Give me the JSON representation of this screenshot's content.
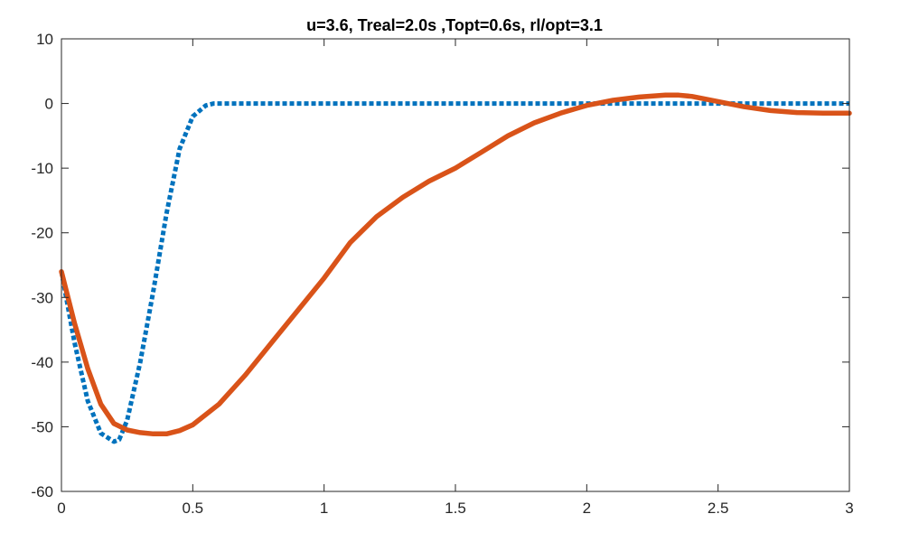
{
  "chart_data": {
    "type": "line",
    "title": "u=3.6, Treal=2.0s ,Topt=0.6s, rl/opt=3.1",
    "xlabel": "",
    "ylabel": "",
    "xlim": [
      0,
      3
    ],
    "ylim": [
      -60,
      10
    ],
    "xticks": [
      0,
      0.5,
      1,
      1.5,
      2,
      2.5,
      3
    ],
    "xtick_labels": [
      "0",
      "0.5",
      "1",
      "1.5",
      "2",
      "2.5",
      "3"
    ],
    "yticks": [
      10,
      0,
      -10,
      -20,
      -30,
      -40,
      -50,
      -60
    ],
    "ytick_labels": [
      "10",
      "0",
      "-10",
      "-20",
      "-30",
      "-40",
      "-50",
      "-60"
    ],
    "grid": false,
    "box": true,
    "series": [
      {
        "color": "#0072BD",
        "style": "dotted",
        "x": [
          0,
          0.05,
          0.1,
          0.15,
          0.2,
          0.22,
          0.25,
          0.3,
          0.35,
          0.4,
          0.45,
          0.5,
          0.55,
          0.58,
          0.6,
          0.8,
          1.0,
          1.5,
          2.0,
          2.5,
          3.0
        ],
        "y": [
          -26,
          -37,
          -46,
          -51,
          -52.3,
          -52,
          -49,
          -40,
          -29,
          -17,
          -7,
          -2,
          -0.3,
          0,
          0,
          0,
          0,
          0,
          0,
          0,
          0
        ]
      },
      {
        "color": "#D95319",
        "style": "solid",
        "x": [
          0,
          0.05,
          0.1,
          0.15,
          0.2,
          0.25,
          0.3,
          0.35,
          0.4,
          0.45,
          0.5,
          0.6,
          0.7,
          0.8,
          0.9,
          1.0,
          1.1,
          1.2,
          1.3,
          1.4,
          1.5,
          1.6,
          1.7,
          1.8,
          1.9,
          2.0,
          2.1,
          2.2,
          2.3,
          2.35,
          2.4,
          2.5,
          2.6,
          2.7,
          2.8,
          2.9,
          3.0
        ],
        "y": [
          -26,
          -34,
          -41,
          -46.5,
          -49.5,
          -50.5,
          -50.9,
          -51.1,
          -51.1,
          -50.6,
          -49.7,
          -46.5,
          -42,
          -37,
          -32,
          -27,
          -21.5,
          -17.5,
          -14.5,
          -12,
          -10,
          -7.5,
          -5,
          -3,
          -1.5,
          -0.3,
          0.5,
          1.0,
          1.3,
          1.3,
          1.1,
          0.3,
          -0.5,
          -1.1,
          -1.4,
          -1.5,
          -1.5
        ]
      }
    ]
  }
}
